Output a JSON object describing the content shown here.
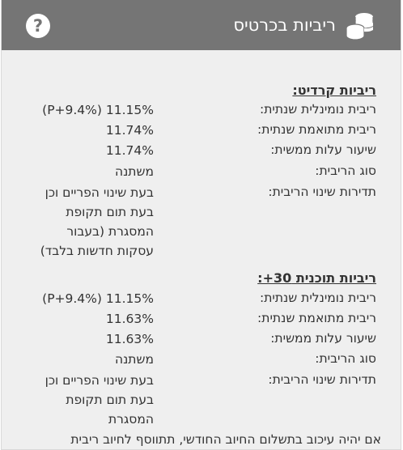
{
  "header": {
    "title": "ריביות בכרטיס",
    "title_icon": "coins-stack-icon",
    "help_icon": "question-icon",
    "help_label": "?"
  },
  "credit": {
    "title": "ריביות קרדיט:",
    "rows": [
      {
        "label": "ריבית נומינלית שנתית:",
        "value": "11.15% (P+9.4%)"
      },
      {
        "label": "ריבית מתואמת שנתית:",
        "value": "11.74%"
      },
      {
        "label": "שיעור עלות ממשית:",
        "value": "11.74%"
      },
      {
        "label": "סוג הריבית:",
        "value": "משתנה"
      },
      {
        "label": "תדירות שינוי הריבית:",
        "value_lines": [
          "בעת שינוי הפריים וכן",
          "בעת תום תקופת",
          "המסגרת (בעבור",
          "עסקות חדשות בלבד)"
        ]
      }
    ]
  },
  "plus30": {
    "title": "ריביות תוכנית 30+:",
    "rows": [
      {
        "label": "ריבית נומינלית שנתית:",
        "value": "11.15% (P+9.4%)"
      },
      {
        "label": "ריבית מתואמת שנתית:",
        "value": "11.63%"
      },
      {
        "label": "שיעור עלות ממשית:",
        "value": "11.63%"
      },
      {
        "label": "סוג הריבית:",
        "value": "משתנה"
      },
      {
        "label": "תדירות שינוי הריבית:",
        "value_lines": [
          "בעת שינוי הפריים וכן",
          "בעת תום תקופת",
          "המסגרת"
        ]
      }
    ]
  },
  "footer_text": "אם יהיה עיכוב בתשלום החיוב החודשי, תתווסף לחיוב ריבית"
}
